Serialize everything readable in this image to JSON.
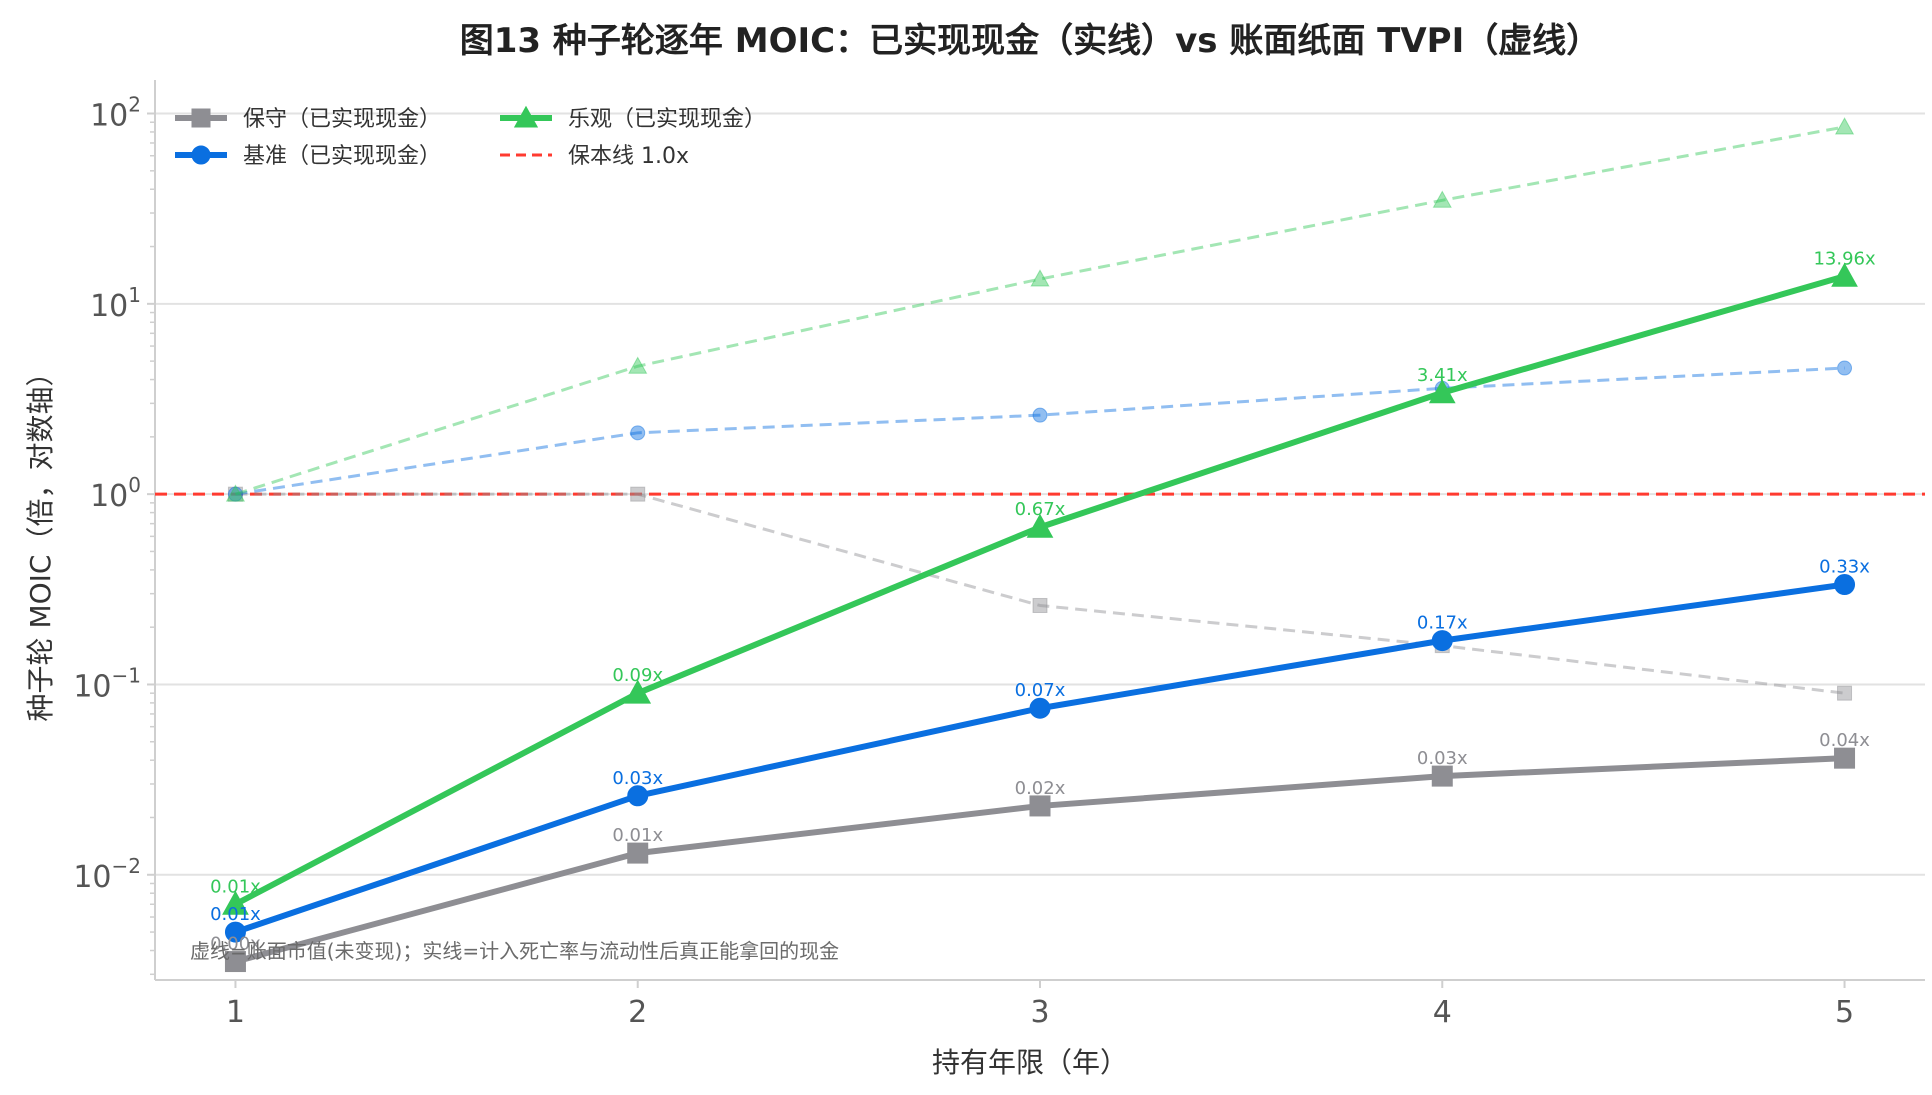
{
  "chart_data": {
    "type": "line",
    "title": "图13 种子轮逐年 MOIC：已实现现金（实线）vs 账面纸面 TVPI（虚线）",
    "xlabel": "持有年限（年）",
    "ylabel": "种子轮 MOIC（倍，对数轴）",
    "x": [
      1,
      2,
      3,
      4,
      5
    ],
    "xlim": [
      0.8,
      5.2
    ],
    "ylim": [
      0.0028,
      150
    ],
    "yscale": "log",
    "y_ticks": [
      {
        "value": 0.01,
        "base": "10",
        "exp": "−2"
      },
      {
        "value": 0.1,
        "base": "10",
        "exp": "−1"
      },
      {
        "value": 1,
        "base": "10",
        "exp": "0"
      },
      {
        "value": 10,
        "base": "10",
        "exp": "1"
      },
      {
        "value": 100,
        "base": "10",
        "exp": "2"
      }
    ],
    "x_ticks": [
      "1",
      "2",
      "3",
      "4",
      "5"
    ],
    "grid": "horizontal",
    "legend_position": "top-left",
    "series": [
      {
        "name": "保守（已实现现金）",
        "key": "conservative",
        "style": "solid",
        "marker": "square",
        "color": "#8e8e93",
        "values": [
          0.0035,
          0.013,
          0.023,
          0.033,
          0.041
        ],
        "labels": [
          "0.00x",
          "0.01x",
          "0.02x",
          "0.03x",
          "0.04x"
        ]
      },
      {
        "name": "基准（已实现现金）",
        "key": "base",
        "style": "solid",
        "marker": "circle",
        "color": "#0a6fe0",
        "values": [
          0.005,
          0.026,
          0.075,
          0.17,
          0.335
        ],
        "labels": [
          "0.01x",
          "0.03x",
          "0.07x",
          "0.17x",
          "0.33x"
        ]
      },
      {
        "name": "乐观（已实现现金）",
        "key": "optimistic",
        "style": "solid",
        "marker": "triangle",
        "color": "#34c759",
        "values": [
          0.007,
          0.09,
          0.67,
          3.41,
          13.96
        ],
        "labels": [
          "0.01x",
          "0.09x",
          "0.67x",
          "3.41x",
          "13.96x"
        ]
      },
      {
        "key": "conservative-paper",
        "style": "dashed",
        "marker": "square",
        "color": "#8e8e93",
        "values": [
          1.0,
          1.0,
          0.26,
          0.16,
          0.09
        ]
      },
      {
        "key": "base-paper",
        "style": "dashed",
        "marker": "circle",
        "color": "#0a6fe0",
        "values": [
          1.0,
          2.1,
          2.6,
          3.6,
          4.6
        ]
      },
      {
        "key": "optimistic-paper",
        "style": "dashed",
        "marker": "triangle",
        "color": "#34c759",
        "values": [
          1.0,
          4.7,
          13.5,
          35,
          85
        ]
      }
    ],
    "reference_line": {
      "name": "保本线 1.0x",
      "value": 1.0,
      "color": "#ff3b30"
    },
    "annotation": "虚线=账面市值(未变现)；实线=计入死亡率与流动性后真正能拿回的现金"
  }
}
